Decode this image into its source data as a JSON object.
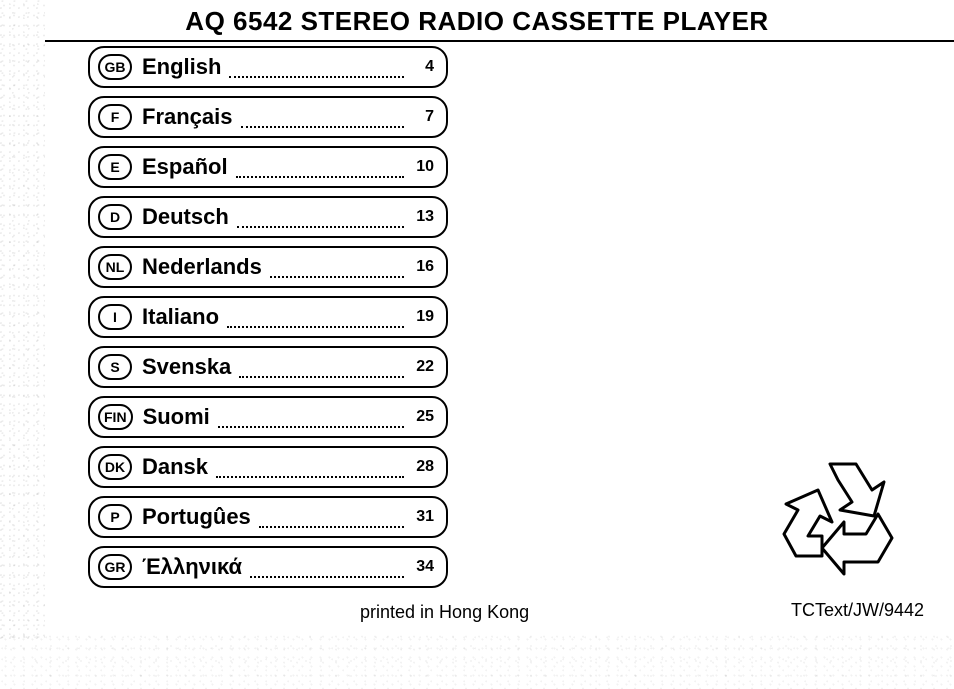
{
  "title": "AQ 6542 STEREO RADIO CASSETTE PLAYER",
  "languages": [
    {
      "code": "GB",
      "name": "English",
      "page": "4"
    },
    {
      "code": "F",
      "name": "Français",
      "page": "7"
    },
    {
      "code": "E",
      "name": "Español",
      "page": "10"
    },
    {
      "code": "D",
      "name": "Deutsch",
      "page": "13"
    },
    {
      "code": "NL",
      "name": "Nederlands",
      "page": "16"
    },
    {
      "code": "I",
      "name": "Italiano",
      "page": "19"
    },
    {
      "code": "S",
      "name": "Svenska",
      "page": "22"
    },
    {
      "code": "FIN",
      "name": "Suomi",
      "page": "25"
    },
    {
      "code": "DK",
      "name": "Dansk",
      "page": "28"
    },
    {
      "code": "P",
      "name": "Portugûes",
      "page": "31"
    },
    {
      "code": "GR",
      "name": "Έλληνικά",
      "page": "34"
    }
  ],
  "printed_note": "printed in Hong Kong",
  "doc_ref": "TCText/JW/9442",
  "colors": {
    "fg": "#000000",
    "bg": "#ffffff"
  }
}
